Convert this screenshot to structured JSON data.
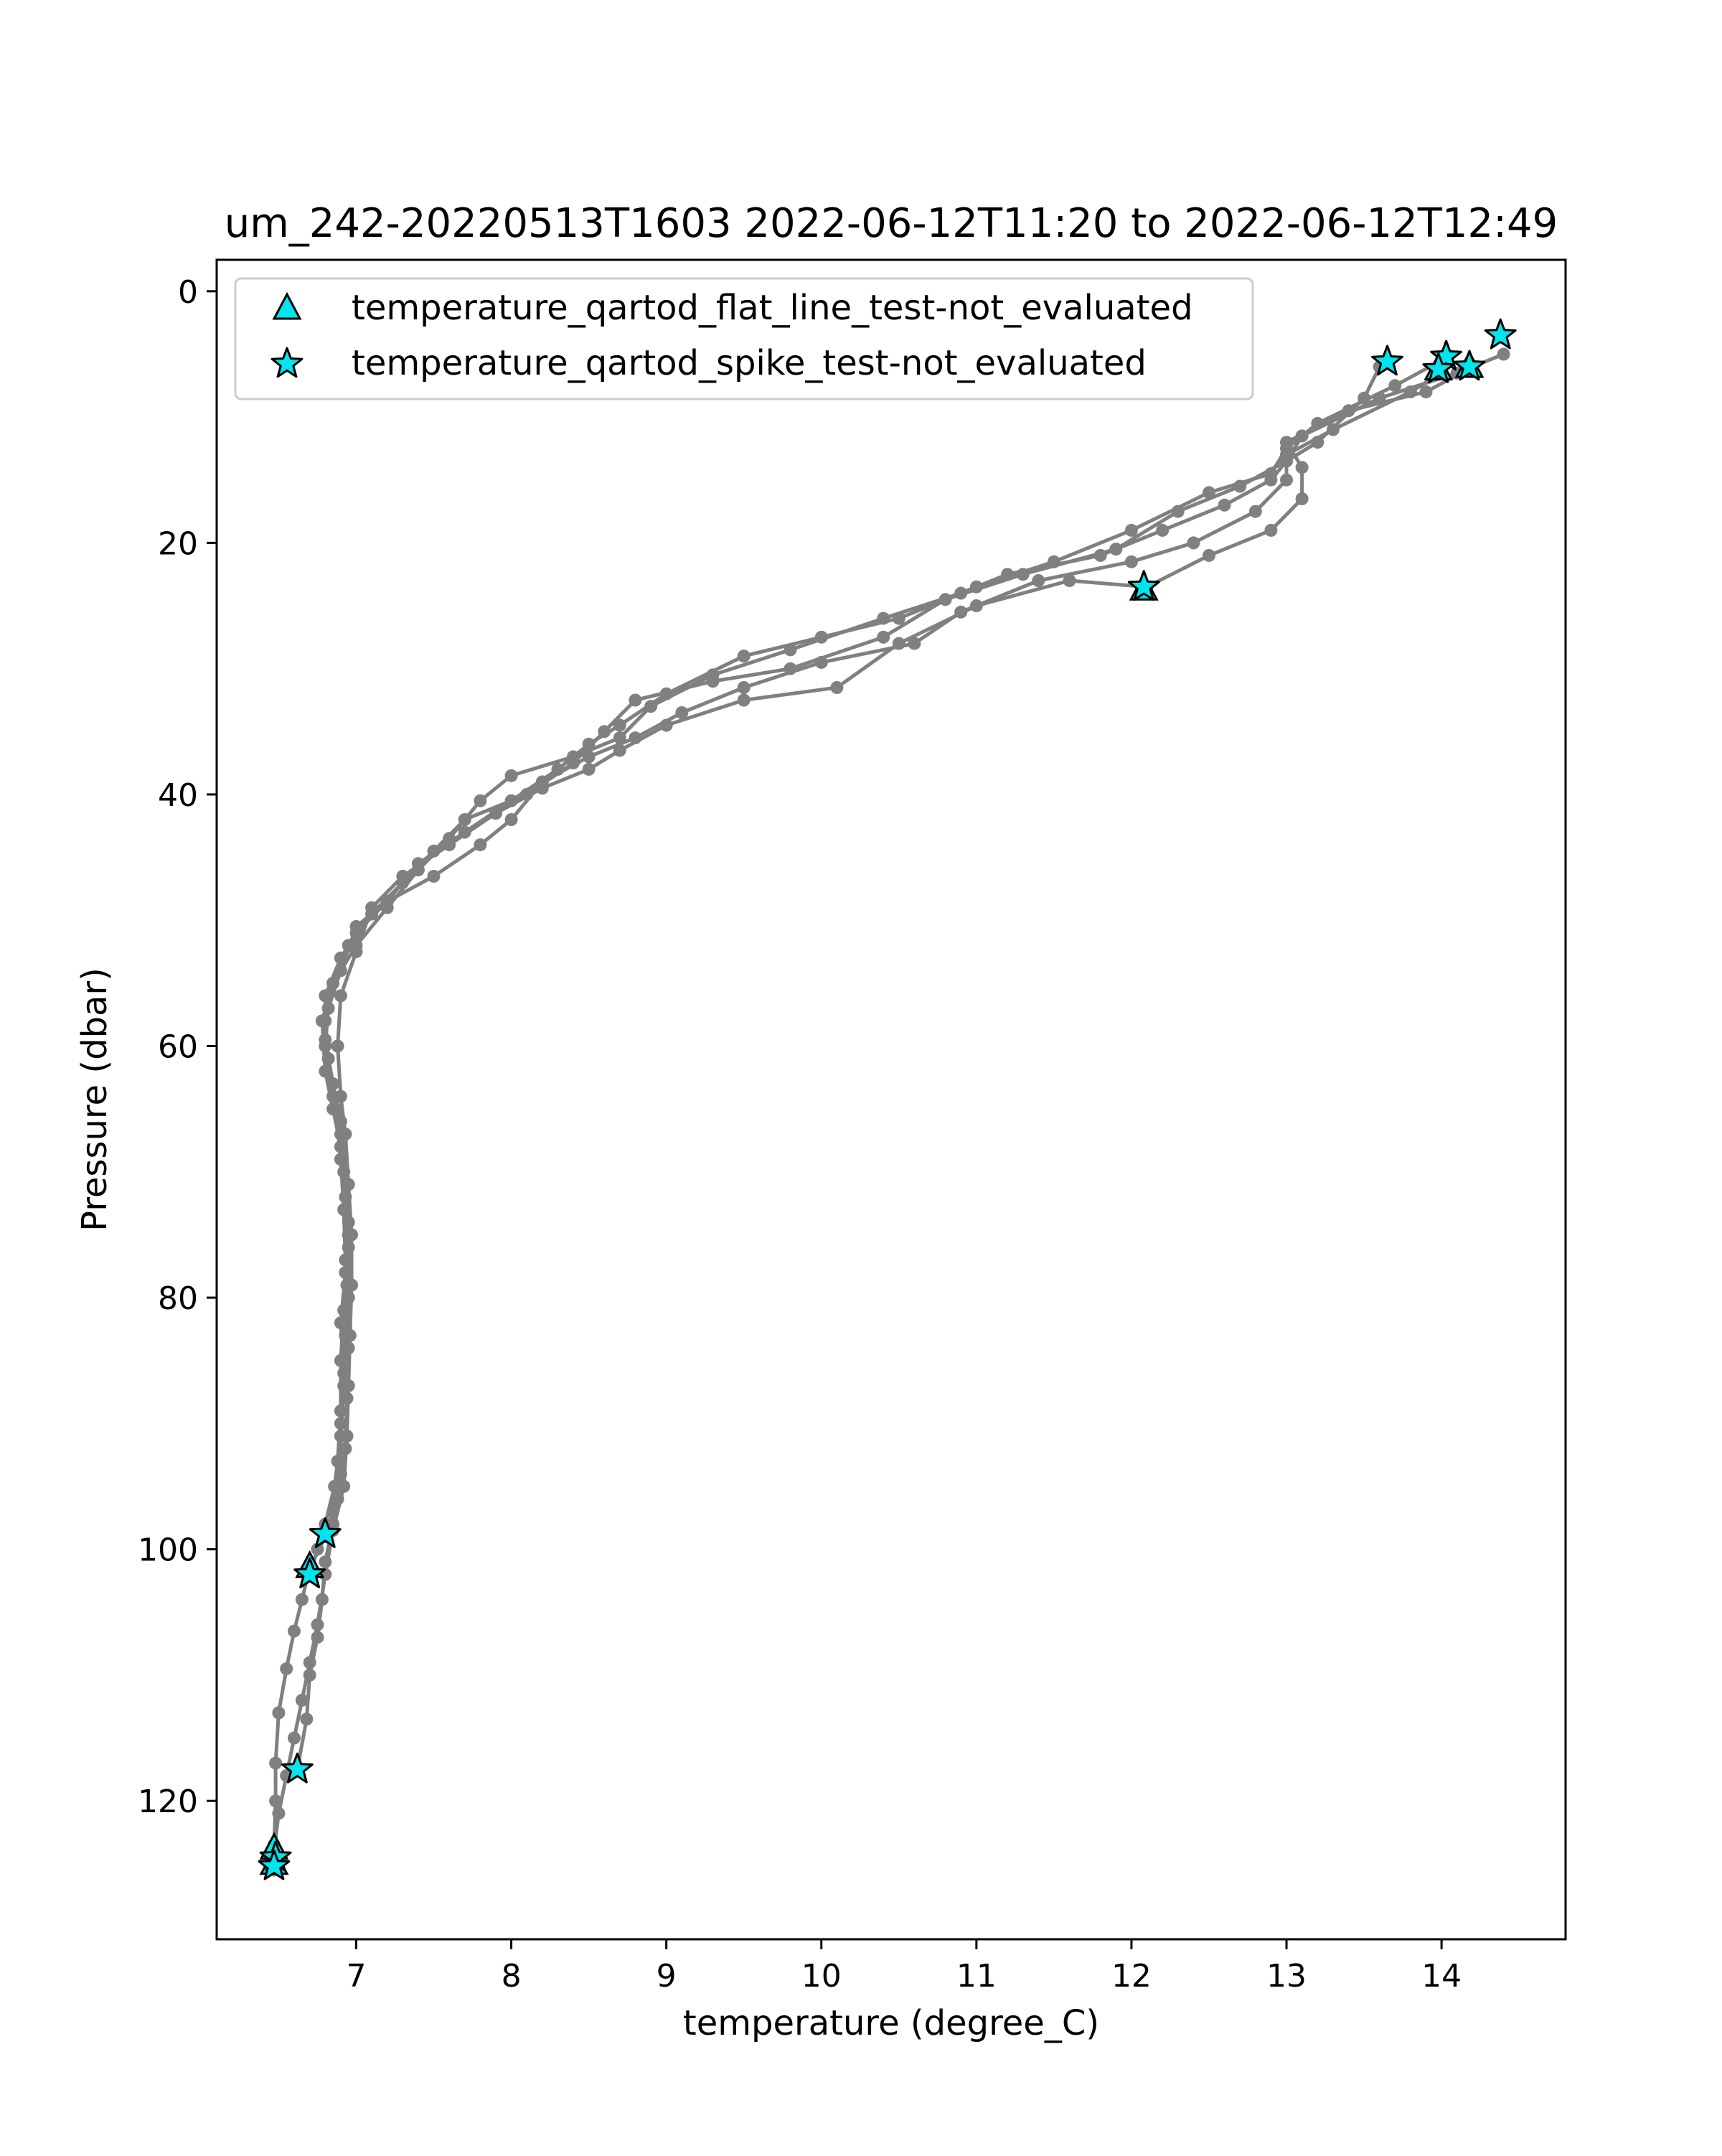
{
  "chart_data": {
    "type": "scatter",
    "title": "um_242-20220513T1603 2022-06-12T11:20 to 2022-06-12T12:49",
    "xlabel": "temperature (degree_C)",
    "ylabel": "Pressure (dbar)",
    "xlim": [
      6.1,
      14.8
    ],
    "ylim": [
      131,
      -2.5
    ],
    "y_inverted": true,
    "xticks": [
      7,
      8,
      9,
      10,
      11,
      12,
      13,
      14
    ],
    "yticks": [
      0,
      20,
      40,
      60,
      80,
      100,
      120
    ],
    "grid": false,
    "legend_position": "top-left",
    "legend": [
      {
        "label": "temperature_qartod_flat_line_test-not_evaluated",
        "marker": "triangle",
        "color": "#00e5ee"
      },
      {
        "label": "temperature_qartod_spike_test-not_evaluated",
        "marker": "star",
        "color": "#00e5ee"
      }
    ],
    "line_color": "#808080",
    "profiles": [
      {
        "name": "profile-1",
        "points": [
          [
            14.0,
            5.5
          ],
          [
            13.7,
            7.5
          ],
          [
            13.2,
            10.5
          ],
          [
            13.0,
            12.5
          ],
          [
            12.9,
            14.5
          ],
          [
            12.5,
            16.0
          ],
          [
            12.0,
            19.0
          ],
          [
            11.5,
            21.5
          ],
          [
            11.0,
            23.5
          ],
          [
            10.5,
            26.0
          ],
          [
            10.0,
            27.5
          ],
          [
            9.5,
            29.0
          ],
          [
            9.0,
            32.0
          ],
          [
            8.7,
            34.5
          ],
          [
            8.5,
            36.0
          ],
          [
            8.3,
            38.0
          ],
          [
            8.0,
            40.5
          ],
          [
            7.7,
            43.0
          ],
          [
            7.4,
            45.5
          ],
          [
            7.2,
            48.5
          ],
          [
            7.0,
            51.0
          ],
          [
            6.9,
            53.0
          ],
          [
            6.8,
            56.0
          ],
          [
            6.8,
            59.5
          ],
          [
            6.85,
            63.0
          ],
          [
            6.9,
            66.0
          ],
          [
            6.92,
            70.0
          ],
          [
            6.95,
            74.0
          ],
          [
            6.93,
            78.0
          ],
          [
            6.9,
            82.0
          ],
          [
            6.92,
            86.0
          ],
          [
            6.9,
            90.0
          ],
          [
            6.9,
            94.0
          ],
          [
            6.85,
            98.0
          ],
          [
            6.8,
            101.0
          ],
          [
            6.78,
            104.0
          ],
          [
            6.75,
            107.0
          ],
          [
            6.7,
            110.0
          ],
          [
            6.68,
            113.5
          ],
          [
            6.62,
            117.5
          ]
        ]
      },
      {
        "name": "profile-2",
        "points": [
          [
            14.4,
            5.0
          ],
          [
            14.1,
            6.5
          ],
          [
            13.6,
            8.5
          ],
          [
            13.1,
            11.5
          ],
          [
            13.0,
            13.5
          ],
          [
            12.7,
            15.5
          ],
          [
            12.3,
            17.5
          ],
          [
            11.9,
            20.5
          ],
          [
            11.3,
            22.5
          ],
          [
            10.8,
            24.5
          ],
          [
            10.4,
            27.5
          ],
          [
            9.8,
            30.0
          ],
          [
            9.3,
            31.0
          ],
          [
            8.8,
            32.5
          ],
          [
            8.6,
            35.0
          ],
          [
            8.4,
            37.5
          ],
          [
            8.1,
            40.0
          ],
          [
            7.7,
            42.0
          ],
          [
            7.5,
            44.5
          ],
          [
            7.3,
            47.0
          ],
          [
            7.1,
            49.5
          ],
          [
            6.95,
            52.0
          ],
          [
            6.85,
            55.0
          ],
          [
            6.78,
            58.0
          ],
          [
            6.8,
            62.0
          ],
          [
            6.85,
            65.0
          ],
          [
            6.9,
            68.0
          ],
          [
            6.93,
            72.0
          ],
          [
            6.95,
            76.0
          ],
          [
            6.95,
            80.0
          ],
          [
            6.95,
            84.0
          ],
          [
            6.94,
            88.0
          ],
          [
            6.93,
            92.0
          ],
          [
            6.88,
            96.0
          ],
          [
            6.8,
            99.0
          ],
          [
            6.7,
            101.5
          ],
          [
            6.65,
            104.0
          ],
          [
            6.6,
            106.5
          ],
          [
            6.55,
            109.5
          ],
          [
            6.5,
            113.0
          ],
          [
            6.48,
            117.0
          ],
          [
            6.48,
            120.0
          ],
          [
            6.47,
            123.5
          ],
          [
            6.47,
            125.5
          ]
        ]
      },
      {
        "name": "profile-3",
        "points": [
          [
            14.2,
            6.0
          ],
          [
            13.9,
            8.0
          ],
          [
            13.4,
            9.5
          ],
          [
            13.0,
            12.0
          ],
          [
            13.1,
            14.0
          ],
          [
            13.1,
            16.5
          ],
          [
            12.9,
            19.0
          ],
          [
            12.5,
            21.0
          ],
          [
            12.1,
            23.5
          ],
          [
            11.6,
            23.0
          ],
          [
            11.0,
            25.0
          ],
          [
            10.5,
            28.0
          ],
          [
            10.1,
            31.5
          ],
          [
            9.5,
            32.5
          ],
          [
            9.0,
            34.5
          ],
          [
            8.7,
            36.5
          ],
          [
            8.5,
            38.0
          ],
          [
            8.2,
            39.5
          ],
          [
            7.9,
            41.5
          ],
          [
            7.6,
            44.0
          ],
          [
            7.3,
            46.5
          ],
          [
            7.1,
            49.0
          ],
          [
            7.0,
            52.5
          ],
          [
            6.9,
            56.0
          ],
          [
            6.88,
            60.0
          ],
          [
            6.9,
            64.0
          ],
          [
            6.93,
            67.0
          ],
          [
            6.95,
            71.0
          ],
          [
            6.97,
            75.0
          ],
          [
            6.97,
            79.0
          ],
          [
            6.96,
            83.0
          ],
          [
            6.95,
            87.0
          ],
          [
            6.94,
            91.0
          ],
          [
            6.92,
            95.0
          ],
          [
            6.85,
            98.5
          ],
          [
            6.8,
            102.0
          ],
          [
            6.75,
            106.0
          ],
          [
            6.7,
            109.0
          ],
          [
            6.65,
            112.0
          ],
          [
            6.6,
            115.0
          ],
          [
            6.55,
            118.0
          ],
          [
            6.5,
            121.0
          ],
          [
            6.47,
            124.0
          ]
        ]
      },
      {
        "name": "profile-4",
        "points": [
          [
            13.6,
            6.0
          ],
          [
            13.5,
            8.5
          ],
          [
            13.2,
            12.0
          ],
          [
            13.0,
            13.5
          ],
          [
            12.9,
            15.0
          ],
          [
            12.6,
            17.0
          ],
          [
            12.2,
            19.0
          ],
          [
            11.8,
            21.0
          ],
          [
            11.2,
            22.5
          ],
          [
            10.9,
            24.0
          ],
          [
            10.4,
            26.0
          ],
          [
            9.8,
            28.5
          ],
          [
            9.3,
            30.5
          ],
          [
            8.9,
            33.0
          ],
          [
            8.7,
            35.5
          ],
          [
            8.4,
            37.0
          ],
          [
            8.0,
            38.5
          ],
          [
            7.8,
            40.5
          ],
          [
            7.6,
            43.5
          ],
          [
            7.4,
            46.0
          ],
          [
            7.2,
            49.0
          ],
          [
            7.0,
            52.0
          ],
          [
            6.85,
            55.0
          ],
          [
            6.8,
            58.0
          ],
          [
            6.82,
            61.0
          ],
          [
            6.87,
            65.0
          ],
          [
            6.9,
            69.0
          ],
          [
            6.92,
            73.0
          ],
          [
            6.93,
            77.0
          ],
          [
            6.92,
            81.0
          ],
          [
            6.9,
            85.0
          ],
          [
            6.9,
            89.0
          ],
          [
            6.88,
            93.0
          ],
          [
            6.85,
            97.0
          ],
          [
            6.8,
            99.0
          ]
        ]
      },
      {
        "name": "profile-5",
        "points": [
          [
            14.0,
            6.5
          ],
          [
            13.8,
            8.0
          ],
          [
            13.3,
            11.0
          ],
          [
            13.0,
            13.0
          ],
          [
            13.0,
            15.0
          ],
          [
            12.8,
            17.5
          ],
          [
            12.4,
            20.0
          ],
          [
            12.0,
            21.5
          ],
          [
            11.4,
            23.0
          ],
          [
            10.9,
            25.5
          ],
          [
            10.6,
            28.0
          ],
          [
            10.0,
            29.5
          ],
          [
            9.5,
            31.5
          ],
          [
            9.1,
            33.5
          ],
          [
            8.8,
            35.5
          ],
          [
            8.5,
            37.0
          ],
          [
            8.2,
            39.0
          ],
          [
            8.0,
            42.0
          ],
          [
            7.8,
            44.0
          ],
          [
            7.5,
            46.5
          ],
          [
            7.2,
            48.5
          ],
          [
            7.0,
            50.5
          ],
          [
            6.9,
            54.0
          ],
          [
            6.82,
            57.0
          ],
          [
            6.8,
            60.0
          ],
          [
            6.85,
            64.0
          ],
          [
            6.9,
            67.0
          ],
          [
            6.94,
            71.0
          ],
          [
            6.95,
            75.0
          ],
          [
            6.94,
            79.0
          ],
          [
            6.93,
            83.0
          ],
          [
            6.92,
            87.0
          ],
          [
            6.9,
            91.0
          ],
          [
            6.86,
            95.0
          ],
          [
            6.8,
            98.0
          ],
          [
            6.75,
            100.0
          ],
          [
            6.7,
            102.0
          ]
        ]
      }
    ],
    "flat_line_not_evaluated": [
      [
        13.98,
        6.2
      ],
      [
        14.18,
        6.0
      ],
      [
        6.7,
        101.4
      ],
      [
        6.47,
        123.8
      ],
      [
        6.47,
        125.0
      ],
      [
        12.08,
        23.7
      ]
    ],
    "spike_not_evaluated": [
      [
        14.38,
        3.5
      ],
      [
        13.65,
        5.6
      ],
      [
        14.03,
        5.2
      ],
      [
        14.18,
        6.0
      ],
      [
        13.98,
        6.2
      ],
      [
        12.08,
        23.5
      ],
      [
        6.8,
        98.8
      ],
      [
        6.7,
        102.0
      ],
      [
        6.62,
        117.5
      ],
      [
        6.48,
        124.5
      ],
      [
        6.47,
        125.2
      ]
    ]
  }
}
